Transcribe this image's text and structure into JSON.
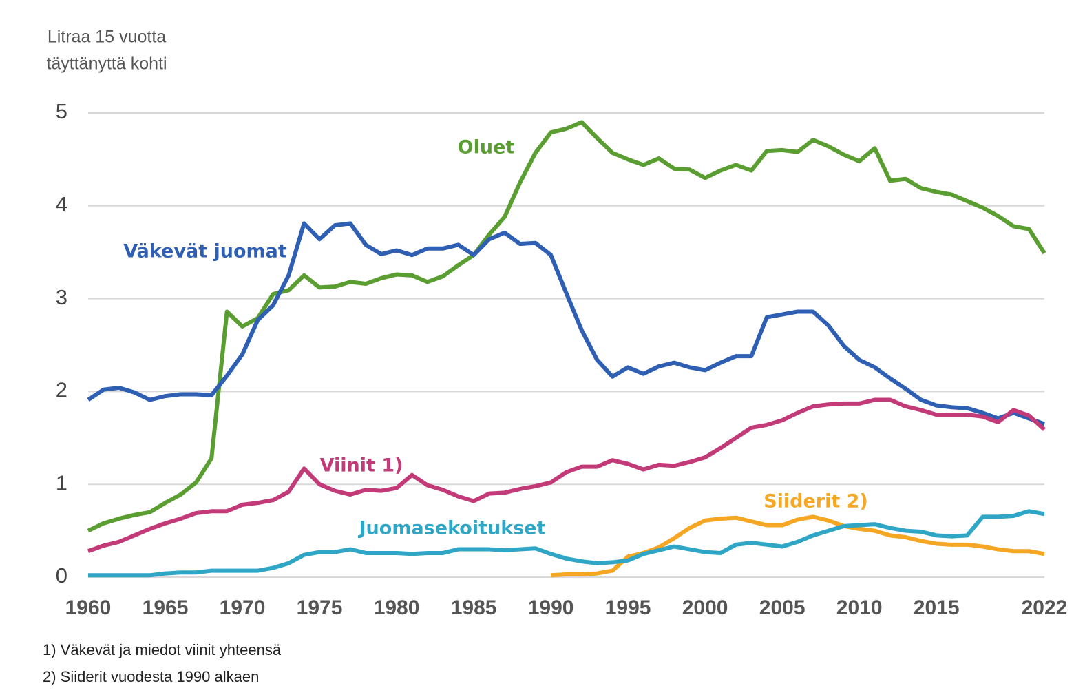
{
  "chart_data": {
    "type": "line",
    "ylabel": [
      "Litraa 15 vuotta",
      "täyttänyttä kohti"
    ],
    "notes": [
      "1) Väkevät ja miedot viinit yhteensä",
      "2) Siiderit vuodesta 1990 alkaen"
    ],
    "x": [
      1960,
      1961,
      1962,
      1963,
      1964,
      1965,
      1966,
      1967,
      1968,
      1969,
      1970,
      1971,
      1972,
      1973,
      1974,
      1975,
      1976,
      1977,
      1978,
      1979,
      1980,
      1981,
      1982,
      1983,
      1984,
      1985,
      1986,
      1987,
      1988,
      1989,
      1990,
      1991,
      1992,
      1993,
      1994,
      1995,
      1996,
      1997,
      1998,
      1999,
      2000,
      2001,
      2002,
      2003,
      2004,
      2005,
      2006,
      2007,
      2008,
      2009,
      2010,
      2011,
      2012,
      2013,
      2014,
      2015,
      2016,
      2017,
      2018,
      2019,
      2020,
      2021,
      2022
    ],
    "xlim": [
      1960,
      2022
    ],
    "xticks": [
      1960,
      1965,
      1970,
      1975,
      1980,
      1985,
      1990,
      1995,
      2000,
      2005,
      2010,
      2015,
      2022
    ],
    "ylim": [
      0,
      5
    ],
    "yticks": [
      0,
      1,
      2,
      3,
      4,
      5
    ],
    "grid": true,
    "series": [
      {
        "name": "Oluet",
        "color": "#5a9e32",
        "values": [
          0.5,
          0.58,
          0.63,
          0.67,
          0.7,
          0.8,
          0.89,
          1.02,
          1.28,
          2.86,
          2.7,
          2.79,
          3.05,
          3.09,
          3.25,
          3.12,
          3.13,
          3.18,
          3.16,
          3.22,
          3.26,
          3.25,
          3.18,
          3.24,
          3.36,
          3.47,
          3.69,
          3.88,
          4.25,
          4.57,
          4.79,
          4.83,
          4.9,
          4.73,
          4.57,
          4.5,
          4.44,
          4.51,
          4.4,
          4.39,
          4.3,
          4.38,
          4.44,
          4.38,
          4.59,
          4.6,
          4.58,
          4.71,
          4.64,
          4.55,
          4.48,
          4.62,
          4.27,
          4.29,
          4.19,
          4.15,
          4.12,
          4.05,
          3.98,
          3.89,
          3.78,
          3.75,
          3.49
        ]
      },
      {
        "name": "Väkevät juomat",
        "color": "#2f5fb3",
        "values": [
          1.91,
          2.02,
          2.04,
          1.99,
          1.91,
          1.95,
          1.97,
          1.97,
          1.96,
          2.17,
          2.4,
          2.77,
          2.93,
          3.25,
          3.81,
          3.64,
          3.79,
          3.81,
          3.58,
          3.48,
          3.52,
          3.47,
          3.54,
          3.54,
          3.58,
          3.47,
          3.64,
          3.71,
          3.59,
          3.6,
          3.47,
          3.06,
          2.66,
          2.34,
          2.16,
          2.26,
          2.19,
          2.27,
          2.31,
          2.26,
          2.23,
          2.31,
          2.38,
          2.38,
          2.8,
          2.83,
          2.86,
          2.86,
          2.71,
          2.49,
          2.34,
          2.26,
          2.14,
          2.03,
          1.91,
          1.85,
          1.83,
          1.82,
          1.77,
          1.71,
          1.77,
          1.71,
          1.65
        ]
      },
      {
        "name": "Viinit 1)",
        "color": "#c23b78",
        "values": [
          0.28,
          0.34,
          0.38,
          0.45,
          0.52,
          0.58,
          0.63,
          0.69,
          0.71,
          0.71,
          0.78,
          0.8,
          0.83,
          0.92,
          1.17,
          1.0,
          0.93,
          0.89,
          0.94,
          0.93,
          0.96,
          1.1,
          0.99,
          0.94,
          0.87,
          0.82,
          0.9,
          0.91,
          0.95,
          0.98,
          1.02,
          1.13,
          1.19,
          1.19,
          1.26,
          1.22,
          1.16,
          1.21,
          1.2,
          1.24,
          1.29,
          1.39,
          1.5,
          1.61,
          1.64,
          1.69,
          1.77,
          1.84,
          1.86,
          1.87,
          1.87,
          1.91,
          1.91,
          1.84,
          1.8,
          1.75,
          1.75,
          1.75,
          1.73,
          1.67,
          1.8,
          1.74,
          1.59
        ]
      },
      {
        "name": "Siiderit 2)",
        "color": "#f5a623",
        "values": [
          null,
          null,
          null,
          null,
          null,
          null,
          null,
          null,
          null,
          null,
          null,
          null,
          null,
          null,
          null,
          null,
          null,
          null,
          null,
          null,
          null,
          null,
          null,
          null,
          null,
          null,
          null,
          null,
          null,
          null,
          0.02,
          0.03,
          0.03,
          0.04,
          0.07,
          0.22,
          0.26,
          0.32,
          0.42,
          0.53,
          0.61,
          0.63,
          0.64,
          0.6,
          0.56,
          0.56,
          0.62,
          0.65,
          0.61,
          0.55,
          0.52,
          0.5,
          0.45,
          0.43,
          0.39,
          0.36,
          0.35,
          0.35,
          0.33,
          0.3,
          0.28,
          0.28,
          0.25
        ]
      },
      {
        "name": "Juomasekoitukset",
        "color": "#2fa6c5",
        "values": [
          0.02,
          0.02,
          0.02,
          0.02,
          0.02,
          0.04,
          0.05,
          0.05,
          0.07,
          0.07,
          0.07,
          0.07,
          0.1,
          0.15,
          0.24,
          0.27,
          0.27,
          0.3,
          0.26,
          0.26,
          0.26,
          0.25,
          0.26,
          0.26,
          0.3,
          0.3,
          0.3,
          0.29,
          0.3,
          0.31,
          0.25,
          0.2,
          0.17,
          0.15,
          0.16,
          0.18,
          0.25,
          0.29,
          0.33,
          0.3,
          0.27,
          0.26,
          0.35,
          0.37,
          0.35,
          0.33,
          0.38,
          0.45,
          0.5,
          0.55,
          0.56,
          0.57,
          0.53,
          0.5,
          0.49,
          0.45,
          0.44,
          0.45,
          0.65,
          0.65,
          0.66,
          0.71,
          0.68
        ]
      }
    ]
  }
}
